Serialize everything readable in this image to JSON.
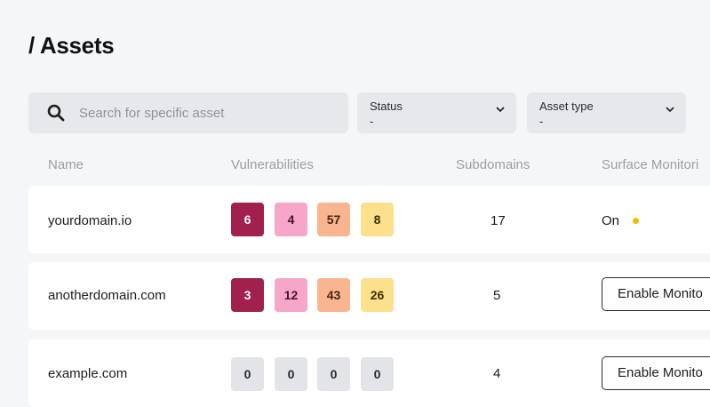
{
  "page": {
    "title": "/ Assets"
  },
  "filters": {
    "search_placeholder": "Search for specific asset",
    "status": {
      "label": "Status",
      "value": "-"
    },
    "asset_type": {
      "label": "Asset type",
      "value": "-"
    }
  },
  "table": {
    "columns": [
      "Name",
      "Vulnerabilities",
      "Subdomains",
      "Surface Monitori"
    ],
    "rows": [
      {
        "name": "yourdomain.io",
        "vulns": [
          "6",
          "4",
          "57",
          "8"
        ],
        "subdomains": "17",
        "monitoring": "On",
        "action": ""
      },
      {
        "name": "anotherdomain.com",
        "vulns": [
          "3",
          "12",
          "43",
          "26"
        ],
        "subdomains": "5",
        "monitoring": "",
        "action": "Enable Monito"
      },
      {
        "name": "example.com",
        "vulns": [
          "0",
          "0",
          "0",
          "0"
        ],
        "subdomains": "4",
        "monitoring": "",
        "action": "Enable Monito"
      }
    ]
  },
  "colors": {
    "critical": "#a1204d",
    "high": "#f6a6c8",
    "medium": "#f9b58f",
    "low": "#fde08c",
    "none": "#e3e4e7",
    "status_on": "#f6b800"
  },
  "icons": [
    "search-icon",
    "chevron-down-icon",
    "status-dot-icon"
  ]
}
